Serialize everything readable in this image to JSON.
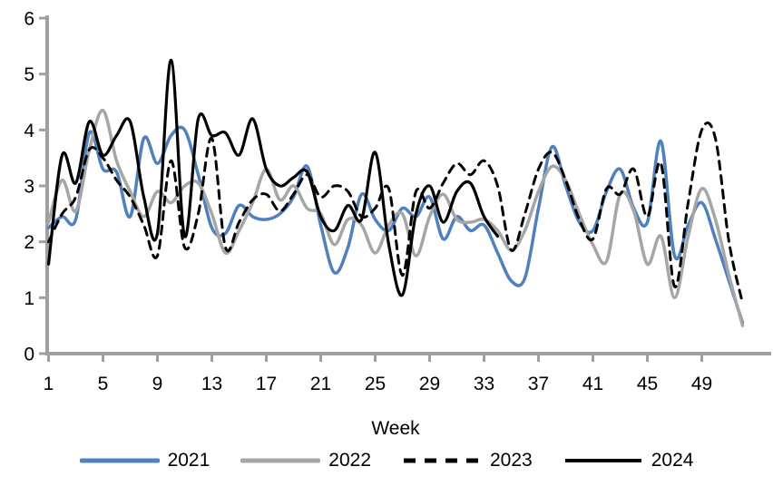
{
  "chart_data": {
    "type": "line",
    "title": "",
    "xlabel": "Week",
    "ylabel": "",
    "ylim": [
      0,
      6
    ],
    "yticks": [
      0,
      1,
      2,
      3,
      4,
      5,
      6
    ],
    "xticks": [
      1,
      5,
      9,
      13,
      17,
      21,
      25,
      29,
      33,
      37,
      41,
      45,
      49
    ],
    "x_range": [
      1,
      52
    ],
    "grid": false,
    "legend_position": "bottom",
    "axis_color": "#A0A0A0",
    "smooth_lines": true,
    "series": [
      {
        "name": "2021",
        "color": "#4F81BD",
        "style": "solid",
        "start_week": 1,
        "values": [
          2.25,
          2.45,
          2.4,
          3.95,
          3.3,
          3.25,
          2.45,
          3.85,
          3.4,
          3.9,
          4.0,
          3.2,
          2.25,
          2.15,
          2.65,
          2.45,
          2.4,
          2.5,
          2.8,
          3.35,
          2.3,
          1.45,
          1.9,
          2.85,
          2.4,
          2.2,
          2.6,
          2.45,
          2.8,
          2.05,
          2.45,
          2.2,
          2.3,
          1.8,
          1.3,
          1.35,
          2.6,
          3.7,
          3.0,
          2.35,
          2.2,
          2.9,
          3.3,
          2.6,
          2.35,
          3.8,
          1.75,
          2.3,
          2.7,
          2.05,
          1.3,
          0.55
        ]
      },
      {
        "name": "2022",
        "color": "#A6A6A6",
        "style": "solid",
        "start_week": 1,
        "values": [
          2.35,
          3.1,
          2.55,
          3.65,
          4.35,
          3.45,
          2.9,
          2.45,
          2.9,
          2.7,
          3.0,
          3.05,
          2.5,
          1.8,
          2.2,
          2.7,
          3.3,
          2.75,
          3.0,
          2.6,
          2.5,
          1.95,
          2.4,
          2.3,
          1.8,
          2.3,
          2.5,
          1.75,
          2.45,
          2.85,
          2.4,
          2.35,
          2.4,
          2.2,
          1.85,
          2.2,
          2.9,
          3.35,
          3.1,
          2.5,
          1.95,
          1.65,
          2.85,
          2.55,
          1.6,
          2.1,
          1.0,
          2.1,
          2.95,
          2.4,
          1.4,
          0.5
        ]
      },
      {
        "name": "2023",
        "color": "#000000",
        "style": "dashed",
        "start_week": 1,
        "values": [
          2.0,
          2.5,
          2.8,
          3.65,
          3.5,
          3.1,
          2.8,
          2.3,
          1.75,
          3.45,
          1.9,
          2.5,
          3.85,
          1.9,
          2.35,
          2.75,
          2.85,
          2.55,
          2.85,
          3.2,
          2.8,
          3.0,
          2.9,
          2.45,
          2.6,
          2.95,
          1.4,
          2.9,
          2.6,
          3.05,
          3.4,
          3.2,
          3.45,
          3.0,
          1.85,
          2.5,
          3.3,
          3.6,
          3.1,
          2.4,
          2.05,
          2.95,
          2.85,
          3.3,
          2.45,
          3.4,
          1.2,
          2.7,
          4.0,
          3.85,
          2.0,
          0.9
        ]
      },
      {
        "name": "2024",
        "color": "#000000",
        "style": "solid",
        "start_week": 1,
        "values": [
          1.6,
          3.55,
          3.05,
          4.15,
          3.55,
          3.9,
          4.15,
          2.8,
          2.15,
          5.25,
          2.1,
          4.2,
          3.9,
          3.95,
          3.55,
          4.2,
          3.3,
          3.0,
          3.15,
          3.25,
          2.45,
          2.2,
          2.65,
          2.4,
          3.6,
          1.95,
          1.05,
          2.5,
          3.0,
          2.35,
          2.9,
          3.05,
          2.45,
          2.1
        ]
      }
    ]
  }
}
